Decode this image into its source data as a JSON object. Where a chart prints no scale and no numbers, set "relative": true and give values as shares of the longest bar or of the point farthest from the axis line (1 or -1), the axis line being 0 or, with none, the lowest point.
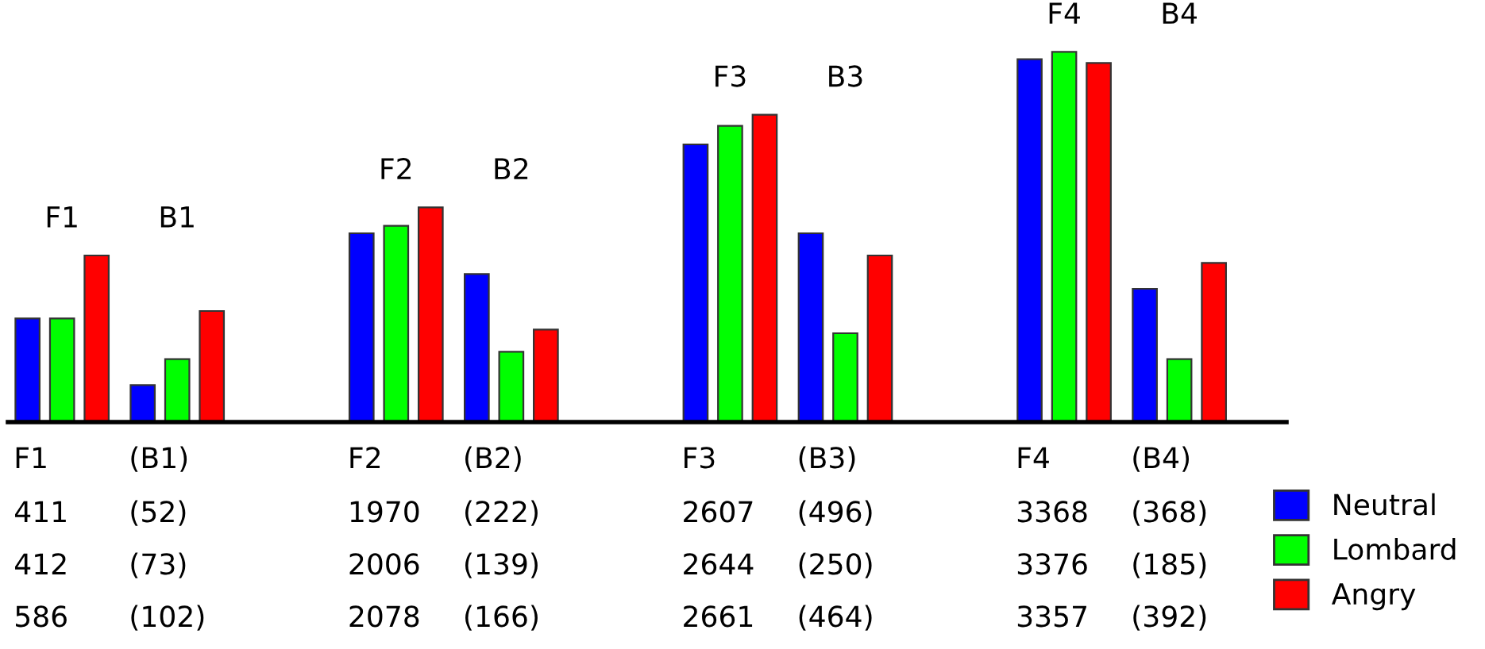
{
  "chart_data": {
    "type": "bar",
    "relative": true,
    "categories": [
      "F1",
      "B1",
      "F2",
      "B2",
      "F3",
      "B3",
      "F4",
      "B4"
    ],
    "annotations": [
      "F1",
      "(B1)",
      "F2",
      "(B2)",
      "F3",
      "(B3)",
      "F4",
      "(B4)",
      "411",
      "(52)",
      "1970",
      "(222)",
      "2607",
      "(496)",
      "3368",
      "(368)",
      "412",
      "(73)",
      "2006",
      "(139)",
      "2644",
      "(250)",
      "3376",
      "(185)",
      "586",
      "(102)",
      "2078",
      "(166)",
      "2661",
      "(464)",
      "3357",
      "(392)"
    ],
    "series": [
      {
        "name": "Neutral",
        "color": "#0000ff",
        "values": [
          0.28,
          0.1,
          0.51,
          0.4,
          0.75,
          0.51,
          0.98,
          0.36
        ]
      },
      {
        "name": "Lombard",
        "color": "#00ff00",
        "values": [
          0.28,
          0.17,
          0.53,
          0.19,
          0.8,
          0.24,
          1.0,
          0.17
        ]
      },
      {
        "name": "Angry",
        "color": "#ff0000",
        "values": [
          0.45,
          0.3,
          0.58,
          0.25,
          0.83,
          0.45,
          0.97,
          0.43
        ]
      }
    ],
    "legend": "bottom right"
  }
}
